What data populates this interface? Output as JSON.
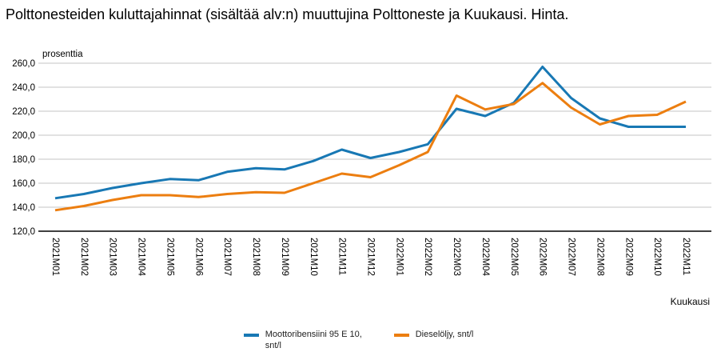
{
  "chart_data": {
    "type": "line",
    "title": "Polttonesteiden kuluttajahinnat (sisältää alv:n) muuttujina Polttoneste ja Kuukausi. Hinta.",
    "ylabel": "prosenttia",
    "xlabel": "Kuukausi",
    "ylim": [
      120,
      260
    ],
    "y_tick_labels": [
      "260,0",
      "240,0",
      "220,0",
      "200,0",
      "180,0",
      "160,0",
      "140,0",
      "120,0"
    ],
    "grid": "horizontal gridlines, black baseline at 120",
    "legend_position": "bottom-center",
    "categories": [
      "2021M01",
      "2021M02",
      "2021M03",
      "2021M04",
      "2021M05",
      "2021M06",
      "2021M07",
      "2021M08",
      "2021M09",
      "2021M10",
      "2021M11",
      "2021M12",
      "2022M01",
      "2022M02",
      "2022M03",
      "2022M04",
      "2022M05",
      "2022M06",
      "2022M07",
      "2022M08",
      "2022M09",
      "2022M10",
      "2022M11"
    ],
    "series": [
      {
        "name": "Moottoribensiini 95 E 10, snt/l",
        "color": "#1878b4",
        "values": [
          147.5,
          151,
          156,
          160,
          163.5,
          162.5,
          169.5,
          172.5,
          171.5,
          178.5,
          188,
          181,
          186,
          192.5,
          222,
          216,
          227,
          257,
          231,
          214,
          207,
          207,
          207
        ]
      },
      {
        "name": "Dieselöljy, snt/l",
        "color": "#ec7e10",
        "values": [
          137.5,
          141,
          146,
          150,
          150,
          148.5,
          151,
          152.5,
          152,
          160,
          168,
          165,
          175,
          186,
          233,
          221.5,
          226,
          243.5,
          223,
          209,
          216,
          217,
          228
        ]
      }
    ]
  },
  "colors": {
    "gridline": "#c6c6c6",
    "axis_line": "#000000",
    "text": "#000000"
  }
}
